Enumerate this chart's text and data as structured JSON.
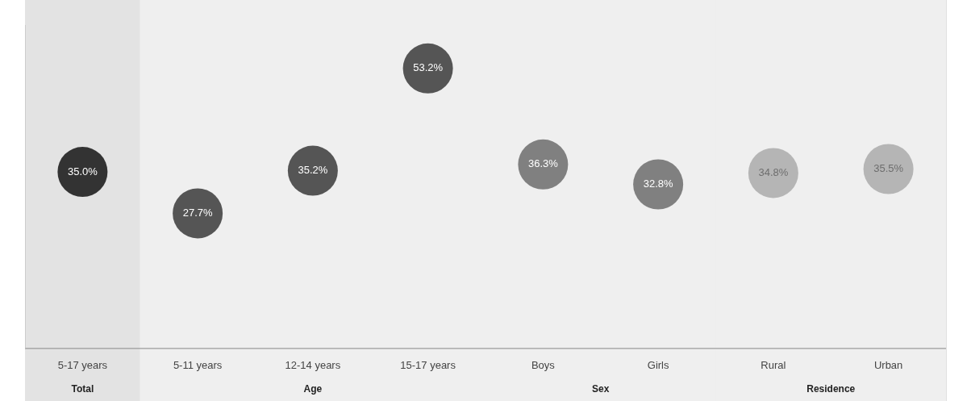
{
  "chart_data": {
    "type": "scatter",
    "categories": [
      "5-17 years",
      "5-11 years",
      "12-14 years",
      "15-17 years",
      "Boys",
      "Girls",
      "Rural",
      "Urban"
    ],
    "values": [
      35.0,
      27.7,
      35.2,
      53.2,
      36.3,
      32.8,
      34.8,
      35.5
    ],
    "colors": [
      "#333333",
      "#555555",
      "#555555",
      "#555555",
      "#808080",
      "#808080",
      "#b5b5b5",
      "#b5b5b5"
    ],
    "value_labels": [
      "35.0%",
      "27.7%",
      "35.2%",
      "53.2%",
      "36.3%",
      "32.8%",
      "34.8%",
      "35.5%"
    ],
    "tick_labels": "x",
    "marker": "circle",
    "bands": [
      {
        "axis": "x",
        "from": "5-17 years",
        "to": "5-17 years",
        "label": "Total",
        "color": "#e3e3e3"
      },
      {
        "axis": "x",
        "from": "5-11 years",
        "to": "15-17 years",
        "label": "Age",
        "color": "#efefef"
      },
      {
        "axis": "x",
        "from": "Boys",
        "to": "Girls",
        "label": "Sex",
        "color": "#efefef"
      },
      {
        "axis": "x",
        "from": "Rural",
        "to": "Urban",
        "label": "Residence",
        "color": "#efefef"
      }
    ]
  }
}
